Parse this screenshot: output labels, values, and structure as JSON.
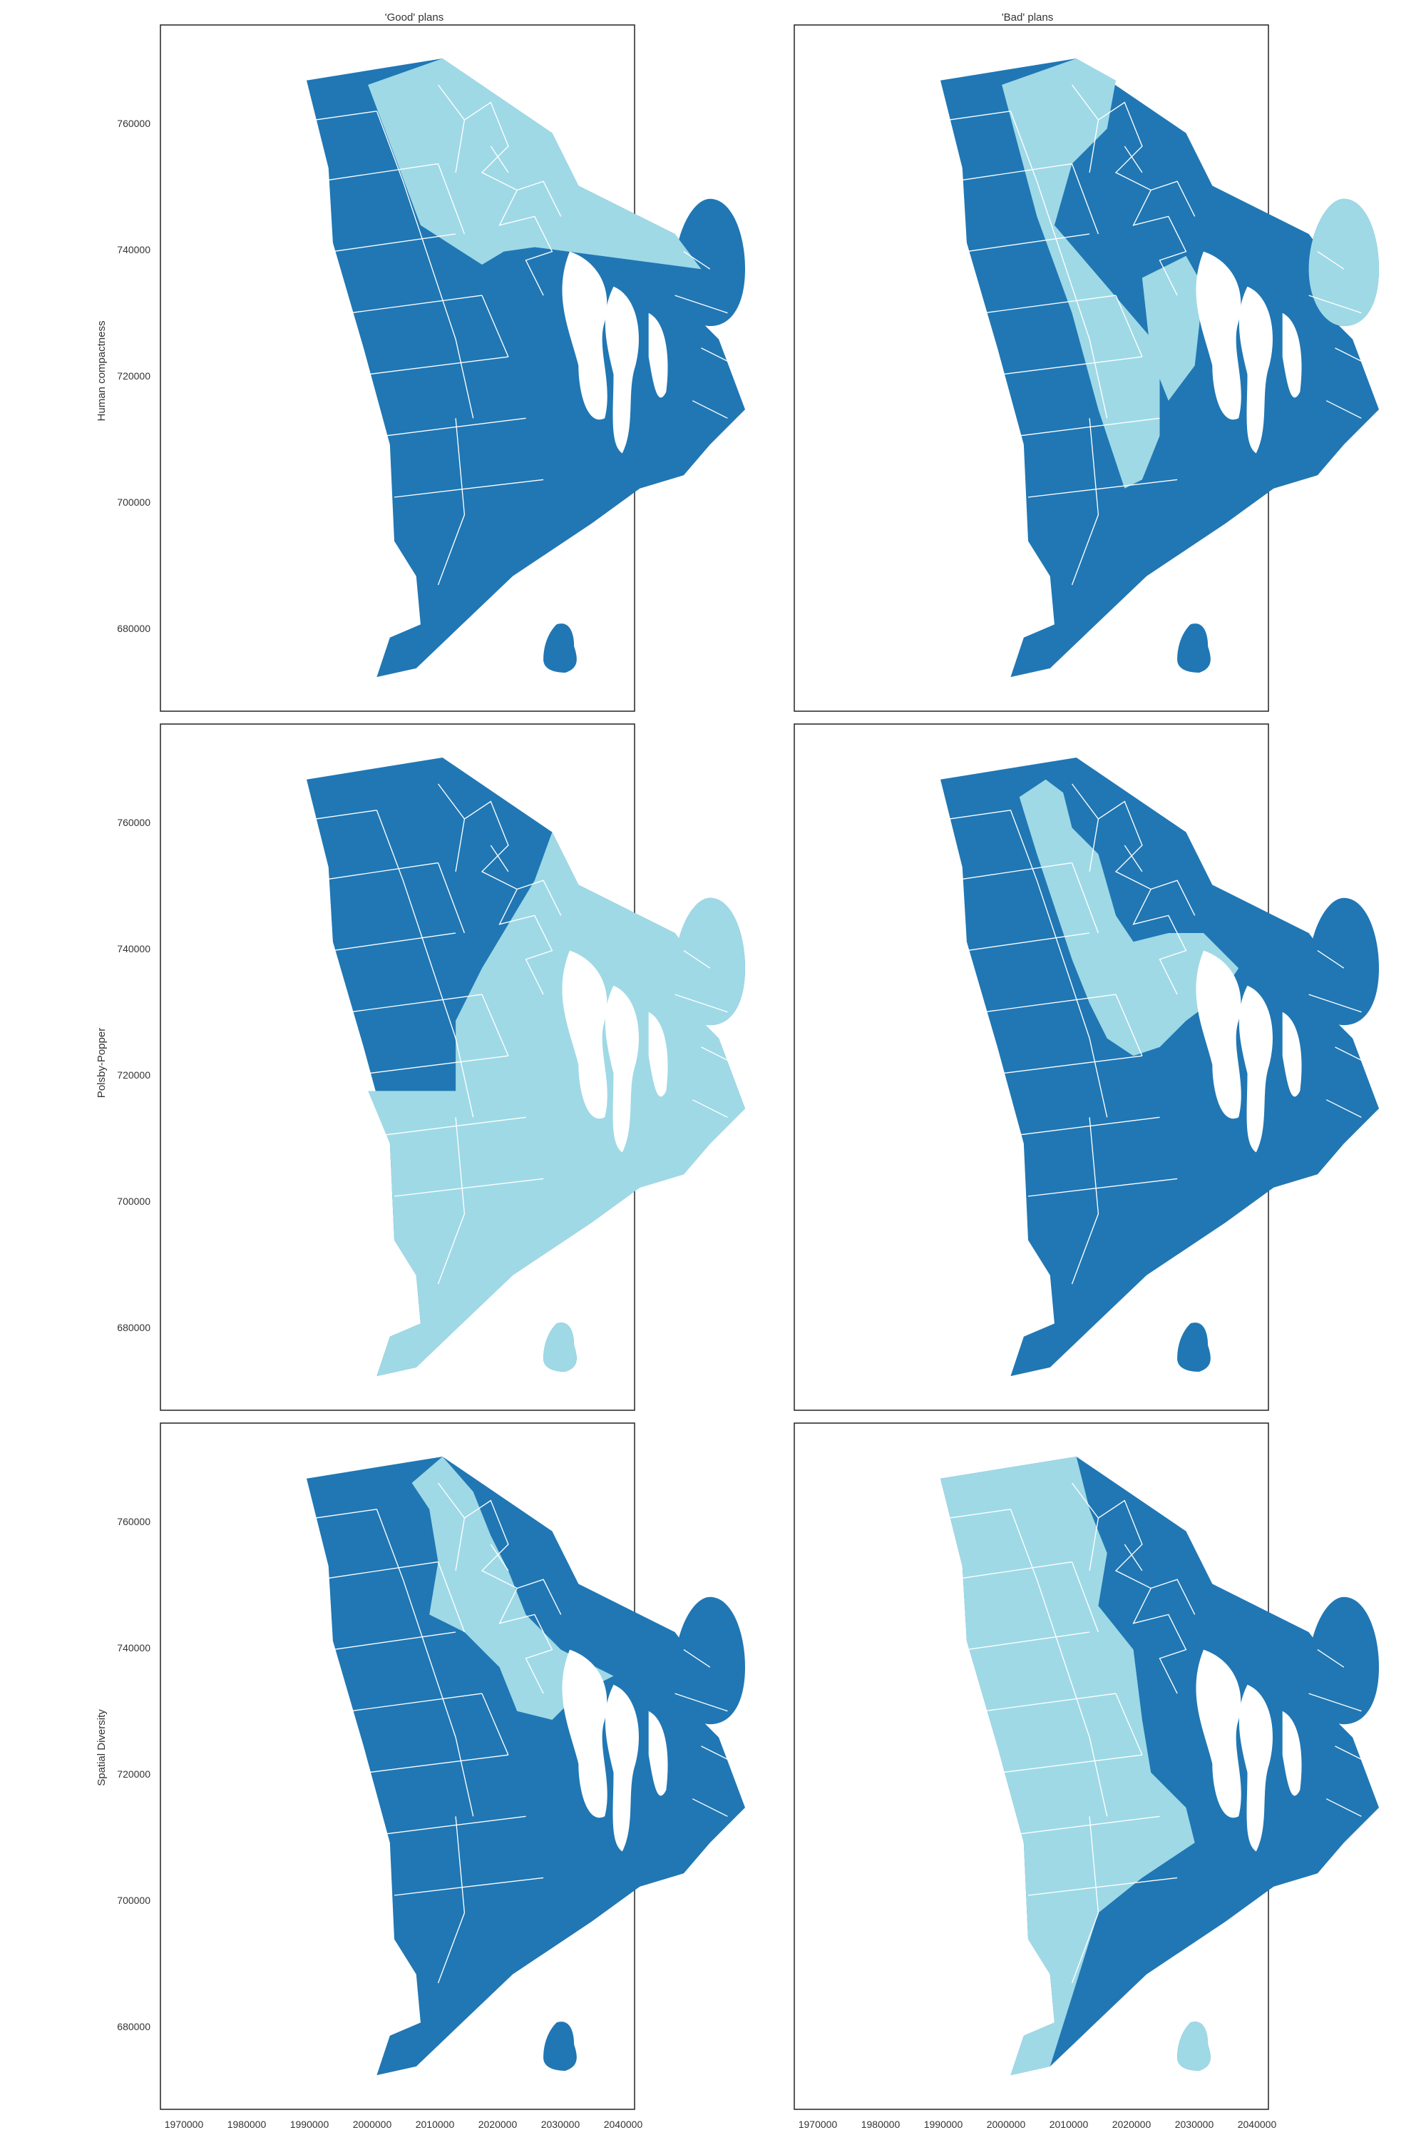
{
  "figure": {
    "column_titles": [
      "'Good' plans",
      "'Bad' plans"
    ],
    "row_labels": [
      "Human compactness",
      "Polsby-Popper",
      "Spatial Diversity"
    ],
    "colors": {
      "district_a": "#2077b4",
      "district_b": "#9fd9e6",
      "boundary": "#ffffff",
      "frame": "#222222"
    },
    "y_ticks": [
      "760000",
      "740000",
      "720000",
      "700000",
      "680000"
    ],
    "x_ticks": [
      "1970000",
      "1980000",
      "1990000",
      "2000000",
      "2010000",
      "2020000",
      "2030000",
      "2040000"
    ]
  },
  "panels": [
    {
      "id": "human-good",
      "row": 0,
      "col": 0,
      "pattern": "northeast-light"
    },
    {
      "id": "human-bad",
      "row": 0,
      "col": 1,
      "pattern": "central-light"
    },
    {
      "id": "polsby-good",
      "row": 1,
      "col": 0,
      "pattern": "north-dark-south-light"
    },
    {
      "id": "polsby-bad",
      "row": 1,
      "col": 1,
      "pattern": "core-light"
    },
    {
      "id": "spatial-good",
      "row": 2,
      "col": 0,
      "pattern": "city-light"
    },
    {
      "id": "spatial-bad",
      "row": 2,
      "col": 1,
      "pattern": "west-light"
    }
  ]
}
